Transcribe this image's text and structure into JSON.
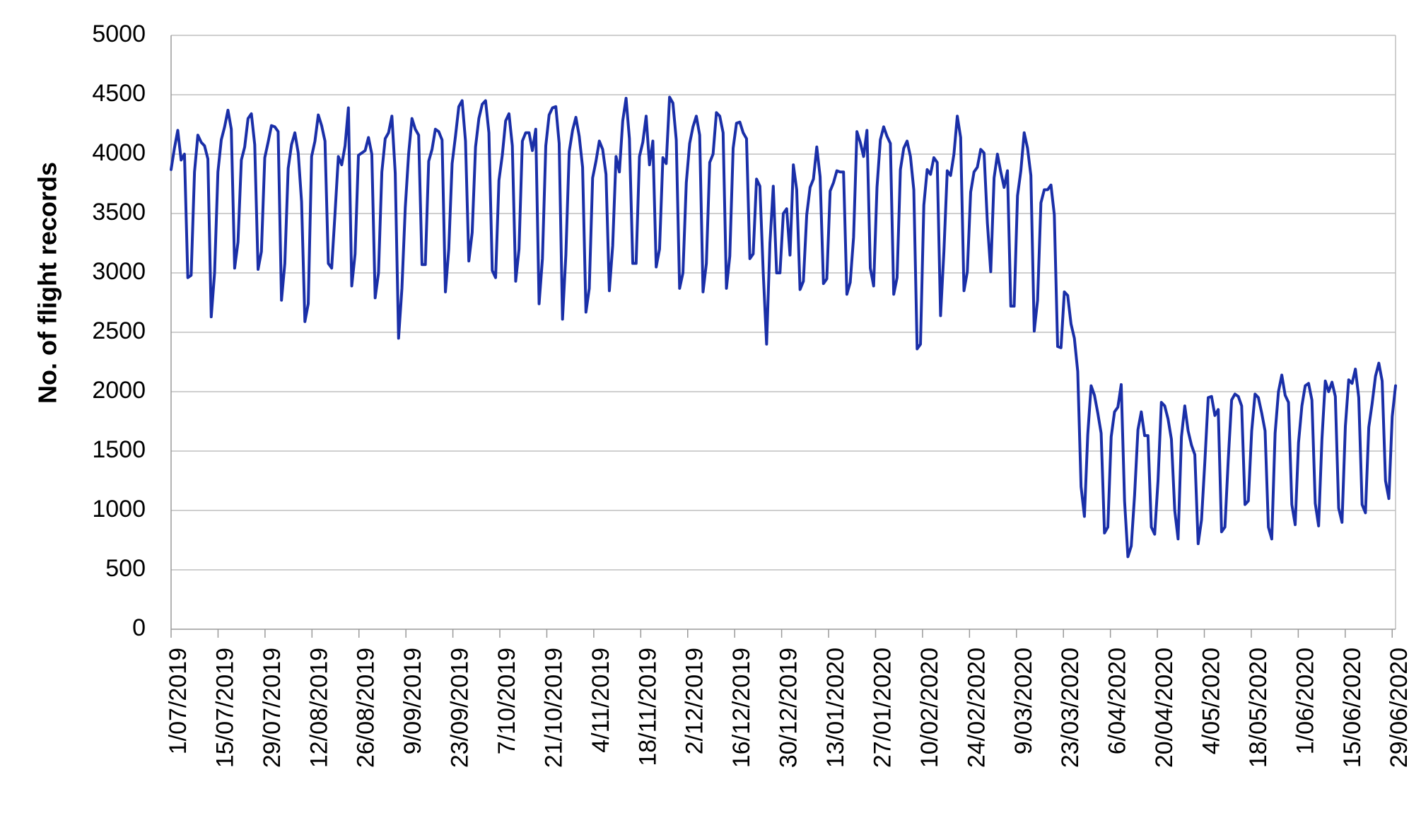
{
  "chart_data": {
    "type": "line",
    "title": "",
    "xlabel": "",
    "ylabel": "No. of flight records",
    "ylim": [
      0,
      5000
    ],
    "yticks": [
      0,
      500,
      1000,
      1500,
      2000,
      2500,
      3000,
      3500,
      4000,
      4500,
      5000
    ],
    "x_start": "2019-07-01",
    "x_end": "2020-06-30",
    "xtick_labels": [
      "1/07/2019",
      "15/07/2019",
      "29/07/2019",
      "12/08/2019",
      "26/08/2019",
      "9/09/2019",
      "23/09/2019",
      "7/10/2019",
      "21/10/2019",
      "4/11/2019",
      "18/11/2019",
      "2/12/2019",
      "16/12/2019",
      "30/12/2019",
      "13/01/2020",
      "27/01/2020",
      "10/02/2020",
      "24/02/2020",
      "9/03/2020",
      "23/03/2020",
      "6/04/2020",
      "20/04/2020",
      "4/05/2020",
      "18/05/2020",
      "1/06/2020",
      "15/06/2020",
      "29/06/2020"
    ],
    "grid": true,
    "legend": "none",
    "line_color": "#1a2fa8",
    "series": [
      {
        "values": [
          3870,
          4050,
          4200,
          3950,
          4000,
          2960,
          2980,
          3850,
          4160,
          4100,
          4070,
          3960,
          2630,
          3000,
          3850,
          4120,
          4230,
          4370,
          4210,
          3040,
          3260,
          3950,
          4060,
          4300,
          4340,
          4080,
          3030,
          3180,
          3970,
          4100,
          4240,
          4230,
          4190,
          2770,
          3080,
          3880,
          4080,
          4180,
          4010,
          3600,
          2590,
          2740,
          3980,
          4110,
          4330,
          4240,
          4110,
          3080,
          3040,
          3500,
          3980,
          3910,
          4070,
          4390,
          2890,
          3160,
          3990,
          4010,
          4030,
          4140,
          4000,
          2790,
          3000,
          3850,
          4130,
          4180,
          4320,
          3840,
          2450,
          2870,
          3550,
          4000,
          4300,
          4210,
          4160,
          3070,
          3070,
          3940,
          4040,
          4210,
          4190,
          4120,
          2840,
          3200,
          3920,
          4150,
          4400,
          4450,
          4110,
          3100,
          3340,
          4060,
          4300,
          4420,
          4450,
          4180,
          3020,
          2960,
          3780,
          3990,
          4280,
          4340,
          4070,
          2930,
          3200,
          4110,
          4180,
          4180,
          4030,
          4210,
          2740,
          3120,
          4070,
          4330,
          4390,
          4400,
          4090,
          2610,
          3150,
          4020,
          4200,
          4310,
          4150,
          3890,
          2670,
          2870,
          3800,
          3940,
          4110,
          4040,
          3830,
          2850,
          3230,
          3980,
          3850,
          4280,
          4470,
          4130,
          3080,
          3080,
          3980,
          4100,
          4320,
          3910,
          4110,
          3050,
          3200,
          3970,
          3920,
          4480,
          4430,
          4120,
          2870,
          3000,
          3760,
          4090,
          4230,
          4320,
          4160,
          2840,
          3080,
          3930,
          4000,
          4350,
          4320,
          4180,
          2870,
          3140,
          4050,
          4260,
          4270,
          4180,
          4130,
          3120,
          3160,
          3790,
          3730,
          3000,
          2400,
          3250,
          3730,
          3000,
          3000,
          3500,
          3540,
          3150,
          3910,
          3700,
          2860,
          2930,
          3490,
          3720,
          3790,
          4060,
          3810,
          2910,
          2950,
          3690,
          3760,
          3860,
          3850,
          3850,
          2820,
          2920,
          3300,
          4190,
          4100,
          3980,
          4200,
          3040,
          2890,
          3720,
          4120,
          4230,
          4150,
          4090,
          2820,
          2960,
          3870,
          4050,
          4110,
          3980,
          3700,
          2360,
          2400,
          3570,
          3870,
          3830,
          3970,
          3930,
          2640,
          3180,
          3860,
          3820,
          4000,
          4320,
          4140,
          2850,
          3010,
          3680,
          3850,
          3890,
          4040,
          4010,
          3420,
          3010,
          3800,
          4000,
          3850,
          3720,
          3860,
          2720,
          2720,
          3650,
          3860,
          4180,
          4050,
          3820,
          2510,
          2770,
          3590,
          3700,
          3700,
          3740,
          3490,
          2380,
          2370,
          2840,
          2810,
          2570,
          2450,
          2170,
          1200,
          950,
          1640,
          2050,
          1970,
          1820,
          1650,
          810,
          860,
          1620,
          1830,
          1870,
          2060,
          1080,
          610,
          700,
          1130,
          1680,
          1830,
          1630,
          1630,
          860,
          800,
          1250,
          1910,
          1880,
          1770,
          1600,
          1000,
          760,
          1620,
          1880,
          1670,
          1550,
          1470,
          720,
          920,
          1410,
          1950,
          1960,
          1800,
          1850,
          820,
          860,
          1430,
          1930,
          1980,
          1960,
          1880,
          1050,
          1080,
          1670,
          1980,
          1950,
          1820,
          1670,
          860,
          760,
          1650,
          2000,
          2140,
          1970,
          1910,
          1050,
          880,
          1570,
          1880,
          2050,
          2070,
          1930,
          1060,
          870,
          1600,
          2090,
          2000,
          2080,
          1960,
          1020,
          900,
          1710,
          2100,
          2070,
          2190,
          1950,
          1050,
          980,
          1700,
          1900,
          2130,
          2240,
          2090,
          1250,
          1100,
          1790,
          2050
        ]
      }
    ]
  }
}
